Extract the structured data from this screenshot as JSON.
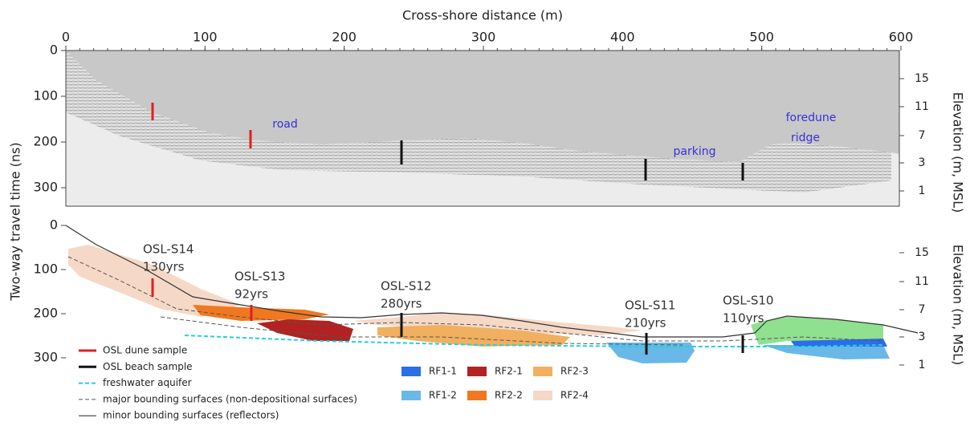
{
  "x_axis": {
    "label": "Cross-shore distance (m)",
    "ticks": [
      0,
      100,
      200,
      300,
      400,
      500,
      600
    ]
  },
  "y_axis_label": "Two-way travel time (ns)",
  "elevation_label": "Elevation (m, MSL)",
  "panels": [
    {
      "y_ticks": [
        0,
        100,
        200,
        300
      ],
      "elevation_ticks": [
        15,
        11,
        7,
        3,
        1
      ],
      "annotations": [
        "road",
        "parking",
        "foredune",
        "ridge"
      ]
    },
    {
      "y_ticks": [
        0,
        100,
        200,
        300
      ],
      "elevation_ticks": [
        15,
        11,
        7,
        3,
        1
      ],
      "samples": [
        {
          "name": "OSL-S14",
          "age": "130yrs"
        },
        {
          "name": "OSL-S13",
          "age": "92yrs"
        },
        {
          "name": "OSL-S12",
          "age": "280yrs"
        },
        {
          "name": "OSL-S11",
          "age": "210yrs"
        },
        {
          "name": "OSL-S10",
          "age": "110yrs"
        }
      ]
    }
  ],
  "legend": {
    "lines": [
      "OSL dune sample",
      "OSL beach sample",
      "freshwater aquifer",
      "major bounding surfaces (non-depositional surfaces)",
      "minor bounding surfaces (reflectors)"
    ],
    "units": [
      "RF1-1",
      "RF1-2",
      "RF2-1",
      "RF2-2",
      "RF2-3",
      "RF2-4"
    ]
  }
}
